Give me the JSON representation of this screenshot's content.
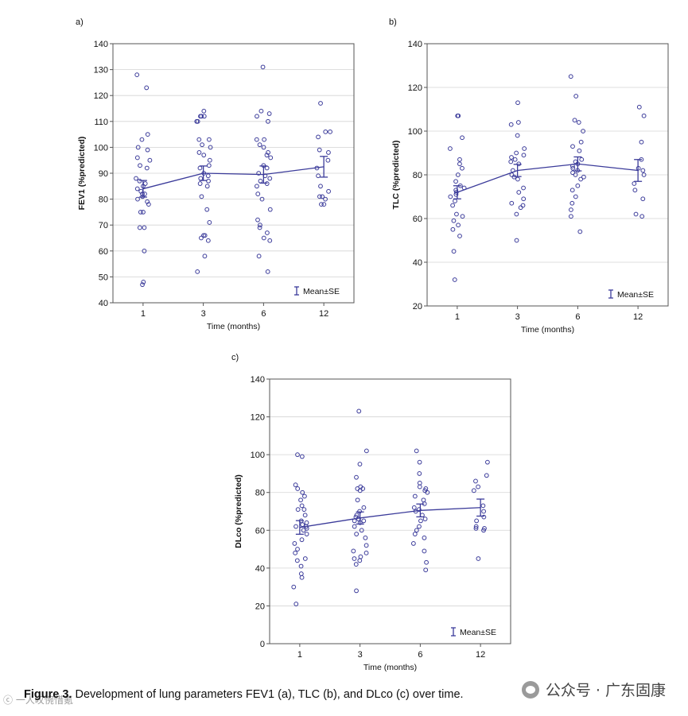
{
  "panels": {
    "a": {
      "label": "a)"
    },
    "b": {
      "label": "b)"
    },
    "c": {
      "label": "c)"
    }
  },
  "caption": {
    "figure_label": "Figure 3.",
    "text": " Development of lung parameters FEV1 (a), TLC (b), and DLco (c) over time."
  },
  "watermark": {
    "text": "公众号 · 广东固康",
    "left_text": "ⓒ 一人叹惋惜氪"
  },
  "colors": {
    "marker": "#3b3b9a",
    "line": "#3b3b9a",
    "grid": "#d4d4d4",
    "axis": "#555555"
  },
  "chart_data": [
    {
      "id": "a",
      "type": "scatter",
      "title": "",
      "xlabel": "Time (months)",
      "ylabel": "FEV1 (%predicted)",
      "categories": [
        "1",
        "3",
        "6",
        "12"
      ],
      "ylim": [
        40,
        140
      ],
      "yticks": [
        40,
        50,
        60,
        70,
        80,
        90,
        100,
        110,
        120,
        130,
        140
      ],
      "grid": true,
      "legend": {
        "label": "Mean±SE",
        "position": "bottom-right"
      },
      "mean": [
        84,
        90,
        89.5,
        92.5
      ],
      "se": [
        3.2,
        2.8,
        3.3,
        4.0
      ],
      "points": [
        [
          123,
          128,
          103,
          105,
          100,
          99,
          96,
          95,
          93,
          92,
          88,
          87,
          86,
          85,
          84,
          83,
          82,
          82,
          81,
          80,
          79,
          78,
          75,
          75,
          69,
          69,
          60,
          48,
          47
        ],
        [
          112,
          112,
          112,
          114,
          110,
          110,
          103,
          103,
          101,
          100,
          98,
          97,
          95,
          93,
          92,
          90,
          89,
          88,
          87,
          86,
          85,
          81,
          76,
          71,
          66,
          66,
          65,
          64,
          58,
          52
        ],
        [
          131,
          114,
          113,
          112,
          110,
          103,
          103,
          101,
          100,
          98,
          97,
          96,
          93,
          92,
          90,
          89,
          88,
          87,
          86,
          85,
          82,
          80,
          76,
          72,
          70,
          69,
          67,
          65,
          64,
          58,
          52
        ],
        [
          117,
          106,
          106,
          104,
          99,
          98,
          95,
          92,
          89,
          85,
          83,
          81,
          81,
          80,
          78,
          78
        ]
      ]
    },
    {
      "id": "b",
      "type": "scatter",
      "title": "",
      "xlabel": "Time (months)",
      "ylabel": "TLC (%predicted)",
      "categories": [
        "1",
        "3",
        "6",
        "12"
      ],
      "ylim": [
        20,
        140
      ],
      "yticks": [
        20,
        40,
        60,
        80,
        100,
        120,
        140
      ],
      "grid": true,
      "legend": {
        "label": "Mean±SE",
        "position": "bottom-right"
      },
      "mean": [
        72,
        82,
        85,
        82
      ],
      "se": [
        3.0,
        2.8,
        3.2,
        5.0
      ],
      "points": [
        [
          107,
          107,
          97,
          92,
          87,
          85,
          83,
          80,
          77,
          75,
          74,
          73,
          72,
          71,
          70,
          68,
          66,
          62,
          61,
          59,
          57,
          55,
          52,
          45,
          32
        ],
        [
          113,
          104,
          103,
          98,
          92,
          90,
          89,
          88,
          87,
          86,
          85,
          82,
          80,
          79,
          78,
          74,
          72,
          69,
          67,
          66,
          65,
          62,
          50
        ],
        [
          125,
          116,
          105,
          104,
          100,
          95,
          93,
          91,
          87,
          86,
          85,
          84,
          83,
          82,
          81,
          80,
          79,
          78,
          75,
          73,
          70,
          67,
          64,
          61,
          54
        ],
        [
          111,
          107,
          95,
          87,
          83,
          82,
          80,
          76,
          73,
          69,
          62,
          61
        ]
      ]
    },
    {
      "id": "c",
      "type": "scatter",
      "title": "",
      "xlabel": "Time (months)",
      "ylabel": "DLco (%predicted)",
      "categories": [
        "1",
        "3",
        "6",
        "12"
      ],
      "ylim": [
        0,
        140
      ],
      "yticks": [
        0,
        20,
        40,
        60,
        80,
        100,
        120,
        140
      ],
      "grid": true,
      "legend": {
        "label": "Mean±SE",
        "position": "bottom-right"
      },
      "mean": [
        61.5,
        66.5,
        70.5,
        72
      ],
      "se": [
        3.6,
        3.2,
        3.4,
        4.5
      ],
      "points": [
        [
          100,
          99,
          84,
          82,
          80,
          78,
          76,
          73,
          71,
          71,
          68,
          65,
          64,
          63,
          62,
          62,
          61,
          60,
          58,
          55,
          53,
          50,
          48,
          45,
          44,
          41,
          37,
          35,
          30,
          21
        ],
        [
          123,
          102,
          95,
          88,
          83,
          82,
          82,
          81,
          76,
          72,
          70,
          68,
          67,
          66,
          65,
          65,
          64,
          62,
          60,
          58,
          56,
          52,
          49,
          48,
          46,
          45,
          44,
          42,
          28
        ],
        [
          102,
          96,
          90,
          85,
          83,
          82,
          81,
          80,
          78,
          76,
          74,
          72,
          71,
          70,
          68,
          66,
          65,
          62,
          60,
          58,
          56,
          53,
          49,
          43,
          39
        ],
        [
          96,
          89,
          86,
          83,
          81,
          73,
          70,
          67,
          65,
          62,
          61,
          61,
          60,
          45
        ]
      ]
    }
  ]
}
